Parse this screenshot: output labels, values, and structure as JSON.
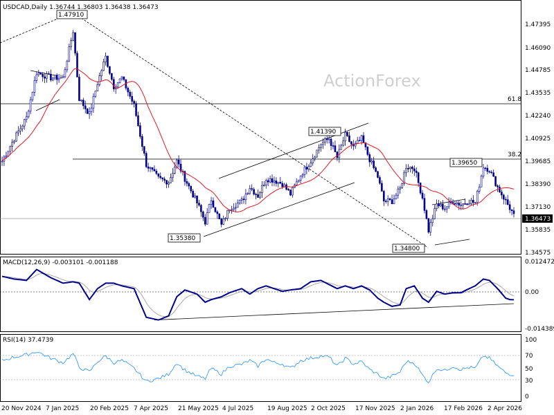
{
  "chart_data": [
    {
      "type": "candlestick",
      "title": "USDCAD,Daily  1.36744 1.36803 1.36438 1.36473",
      "watermark": "ActionForex",
      "ylim": [
        1.342,
        1.487
      ],
      "y_ticks": [
        "1.47395",
        "1.46090",
        "1.44785",
        "1.43535",
        "1.42240",
        "1.40925",
        "1.39685",
        "1.38390",
        "1.37130",
        "1.35835",
        "1.34575"
      ],
      "x_ticks": [
        "20 Nov 2024",
        "7 Jan 2025",
        "20 Feb 2025",
        "7 Apr 2025",
        "21 May 2025",
        "4 Jul 2025",
        "19 Aug 2025",
        "2 Oct 2025",
        "17 Nov 2025",
        "2 Jan 2026",
        "17 Feb 2026",
        "2 Apr 2026"
      ],
      "current_price": "1.36473",
      "current_value": 1.36473,
      "levels": [
        {
          "value": 1.4347,
          "label": "61.8"
        },
        {
          "value": 1.3985,
          "label": "38.2"
        }
      ],
      "annotations": [
        {
          "label": "1.47910",
          "value": 1.4791
        },
        {
          "label": "1.35380",
          "value": 1.3538
        },
        {
          "label": "1.41390",
          "value": 1.4139
        },
        {
          "label": "1.39650",
          "value": 1.3965
        },
        {
          "label": "1.34800",
          "value": 1.348
        }
      ],
      "ma_color": "#e8161f",
      "bar_color": "#00008b",
      "keypoints": [
        [
          0,
          1.395
        ],
        [
          6,
          1.408
        ],
        [
          12,
          1.42
        ],
        [
          17,
          1.446
        ],
        [
          24,
          1.443
        ],
        [
          30,
          1.443
        ],
        [
          35,
          1.47
        ],
        [
          38,
          1.431
        ],
        [
          43,
          1.422
        ],
        [
          47,
          1.44
        ],
        [
          51,
          1.455
        ],
        [
          55,
          1.438
        ],
        [
          59,
          1.443
        ],
        [
          65,
          1.427
        ],
        [
          71,
          1.393
        ],
        [
          77,
          1.385
        ],
        [
          82,
          1.383
        ],
        [
          86,
          1.395
        ],
        [
          90,
          1.385
        ],
        [
          96,
          1.371
        ],
        [
          100,
          1.36
        ],
        [
          103,
          1.373
        ],
        [
          108,
          1.358
        ],
        [
          112,
          1.368
        ],
        [
          118,
          1.372
        ],
        [
          122,
          1.38
        ],
        [
          126,
          1.375
        ],
        [
          130,
          1.385
        ],
        [
          134,
          1.384
        ],
        [
          138,
          1.382
        ],
        [
          142,
          1.376
        ],
        [
          147,
          1.387
        ],
        [
          152,
          1.395
        ],
        [
          157,
          1.405
        ],
        [
          161,
          1.408
        ],
        [
          165,
          1.397
        ],
        [
          169,
          1.41
        ],
        [
          173,
          1.403
        ],
        [
          177,
          1.408
        ],
        [
          181,
          1.396
        ],
        [
          185,
          1.386
        ],
        [
          188,
          1.372
        ],
        [
          192,
          1.372
        ],
        [
          196,
          1.379
        ],
        [
          199,
          1.392
        ],
        [
          203,
          1.391
        ],
        [
          207,
          1.374
        ],
        [
          210,
          1.355
        ],
        [
          214,
          1.37
        ],
        [
          218,
          1.368
        ],
        [
          222,
          1.372
        ],
        [
          226,
          1.37
        ],
        [
          230,
          1.372
        ],
        [
          233,
          1.371
        ],
        [
          237,
          1.392
        ],
        [
          240,
          1.39
        ],
        [
          244,
          1.38
        ],
        [
          248,
          1.372
        ],
        [
          250,
          1.368
        ],
        [
          252,
          1.364
        ]
      ]
    },
    {
      "type": "line",
      "title": "MACD(12,26,9) -0.003101 -0.001188",
      "ylim": [
        -0.01439,
        0.012472
      ],
      "y_ticks": [
        "0.012472",
        "0.00",
        "-0.014389"
      ],
      "series": [
        {
          "color": "#00008b",
          "keypoints": [
            [
              0,
              0.0055
            ],
            [
              6,
              0.0045
            ],
            [
              12,
              0.004
            ],
            [
              17,
              0.008
            ],
            [
              24,
              0.005
            ],
            [
              30,
              0.003
            ],
            [
              35,
              0.0035
            ],
            [
              38,
              0.003
            ],
            [
              43,
              -0.003
            ],
            [
              47,
              0.001
            ],
            [
              51,
              0.003
            ],
            [
              55,
              0.003
            ],
            [
              59,
              0.002
            ],
            [
              65,
              0.001
            ],
            [
              71,
              -0.0095
            ],
            [
              77,
              -0.0105
            ],
            [
              82,
              -0.009
            ],
            [
              86,
              -0.002
            ],
            [
              90,
              0.0005
            ],
            [
              96,
              -0.001
            ],
            [
              100,
              -0.004
            ],
            [
              103,
              -0.003
            ],
            [
              108,
              -0.002
            ],
            [
              112,
              -0.0005
            ],
            [
              118,
              0.001
            ],
            [
              122,
              -0.001
            ],
            [
              126,
              0.001
            ],
            [
              130,
              0.002
            ],
            [
              134,
              0.001
            ],
            [
              138,
              0.0
            ],
            [
              142,
              0.0005
            ],
            [
              147,
              0.001
            ],
            [
              152,
              0.0035
            ],
            [
              157,
              0.004
            ],
            [
              161,
              0.0025
            ],
            [
              165,
              0.001
            ],
            [
              169,
              0.002
            ],
            [
              173,
              0.001
            ],
            [
              177,
              0.002
            ],
            [
              181,
              0.0005
            ],
            [
              185,
              -0.0025
            ],
            [
              188,
              -0.004
            ],
            [
              192,
              -0.0055
            ],
            [
              196,
              -0.005
            ],
            [
              199,
              0.001
            ],
            [
              203,
              0.002
            ],
            [
              207,
              -0.0025
            ],
            [
              210,
              -0.004
            ],
            [
              214,
              0.0
            ],
            [
              218,
              -0.001
            ],
            [
              222,
              -0.0005
            ],
            [
              226,
              -0.0005
            ],
            [
              230,
              0.001
            ],
            [
              233,
              0.002
            ],
            [
              237,
              0.0045
            ],
            [
              240,
              0.004
            ],
            [
              244,
              0.001
            ],
            [
              248,
              -0.0025
            ],
            [
              250,
              -0.003
            ],
            [
              252,
              -0.0031
            ]
          ]
        },
        {
          "color": "#a9a9a9",
          "smoothing": 9
        }
      ],
      "trendline": {
        "from": [
          75,
          -0.0105
        ],
        "to": [
          252,
          -0.0045
        ]
      }
    },
    {
      "type": "line",
      "title": "RSI(14) 37.4739",
      "ylim": [
        0,
        100
      ],
      "y_ticks": [
        "100",
        "70",
        "50",
        "30",
        "0"
      ],
      "levels": [
        70,
        30
      ],
      "series": [
        {
          "color": "#1e90ff",
          "keypoints": [
            [
              0,
              62
            ],
            [
              6,
              68
            ],
            [
              12,
              72
            ],
            [
              17,
              78
            ],
            [
              24,
              66
            ],
            [
              30,
              58
            ],
            [
              35,
              74
            ],
            [
              38,
              50
            ],
            [
              43,
              42
            ],
            [
              47,
              60
            ],
            [
              51,
              70
            ],
            [
              55,
              58
            ],
            [
              59,
              62
            ],
            [
              65,
              48
            ],
            [
              71,
              25
            ],
            [
              77,
              30
            ],
            [
              82,
              38
            ],
            [
              86,
              58
            ],
            [
              90,
              45
            ],
            [
              96,
              34
            ],
            [
              100,
              30
            ],
            [
              103,
              48
            ],
            [
              108,
              38
            ],
            [
              112,
              52
            ],
            [
              118,
              55
            ],
            [
              122,
              62
            ],
            [
              126,
              52
            ],
            [
              130,
              65
            ],
            [
              134,
              58
            ],
            [
              138,
              56
            ],
            [
              142,
              48
            ],
            [
              147,
              62
            ],
            [
              152,
              66
            ],
            [
              157,
              70
            ],
            [
              161,
              68
            ],
            [
              165,
              52
            ],
            [
              169,
              66
            ],
            [
              173,
              56
            ],
            [
              177,
              60
            ],
            [
              181,
              46
            ],
            [
              185,
              38
            ],
            [
              188,
              30
            ],
            [
              192,
              34
            ],
            [
              196,
              42
            ],
            [
              199,
              60
            ],
            [
              203,
              58
            ],
            [
              207,
              36
            ],
            [
              210,
              24
            ],
            [
              214,
              48
            ],
            [
              218,
              44
            ],
            [
              222,
              52
            ],
            [
              226,
              46
            ],
            [
              230,
              50
            ],
            [
              233,
              48
            ],
            [
              237,
              70
            ],
            [
              240,
              66
            ],
            [
              244,
              52
            ],
            [
              248,
              40
            ],
            [
              250,
              38
            ],
            [
              252,
              37
            ]
          ]
        }
      ]
    }
  ]
}
